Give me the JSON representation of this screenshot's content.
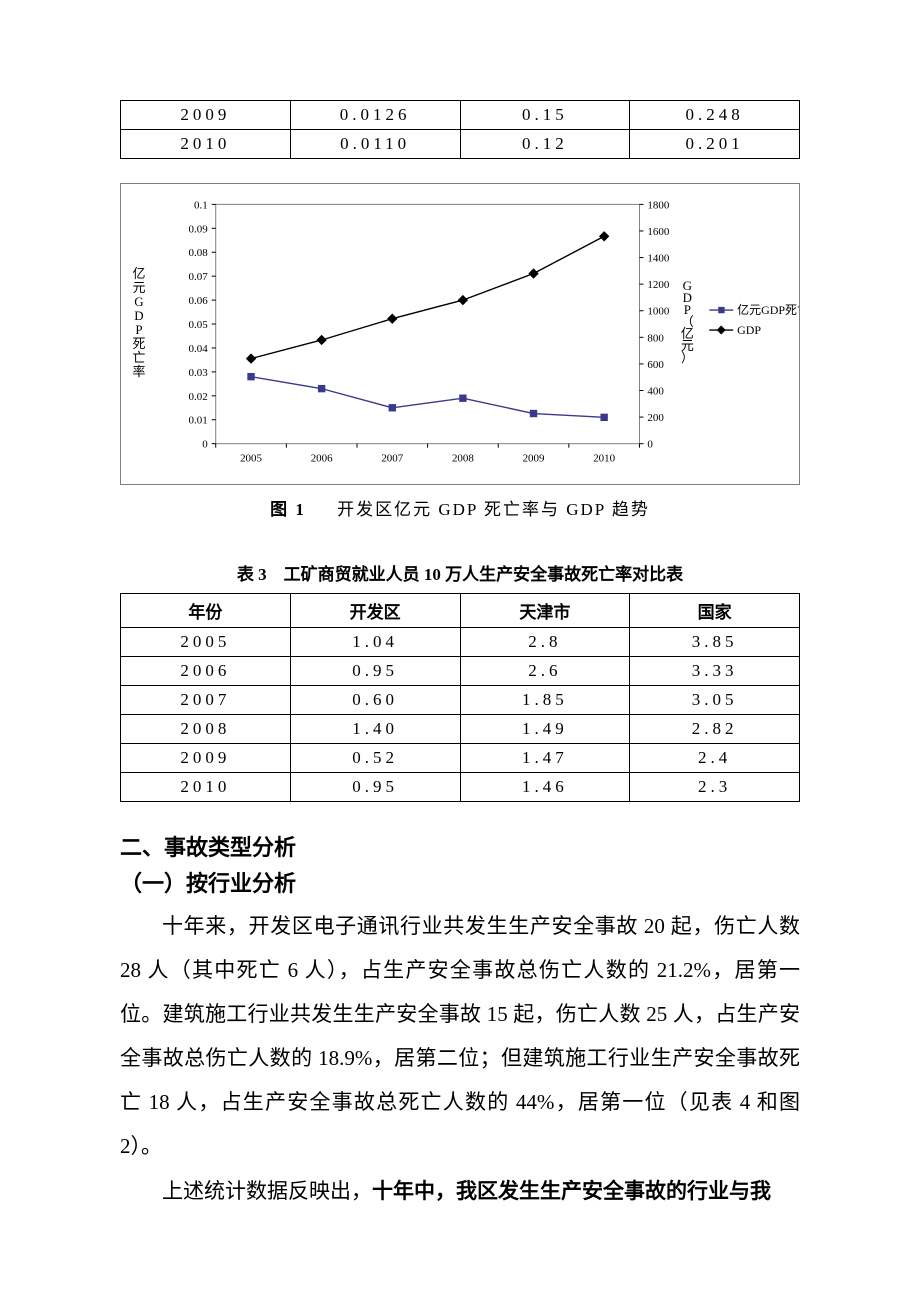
{
  "top_table": {
    "rows": [
      [
        "2009",
        "0.0126",
        "0.15",
        "0.248"
      ],
      [
        "2010",
        "0.0110",
        "0.12",
        "0.201"
      ]
    ]
  },
  "chart": {
    "type": "line",
    "categories": [
      "2005",
      "2006",
      "2007",
      "2008",
      "2009",
      "2010"
    ],
    "series": [
      {
        "name": "亿元GDP死亡率",
        "values": [
          0.028,
          0.023,
          0.015,
          0.019,
          0.0126,
          0.011
        ],
        "color": "#3a3a8c",
        "marker": "square",
        "marker_fill": "#3a3a8c",
        "line_color": "#3a3a8c",
        "axis": "left"
      },
      {
        "name": "GDP",
        "values": [
          640,
          780,
          940,
          1080,
          1280,
          1560
        ],
        "color": "#000000",
        "marker": "diamond",
        "marker_fill": "#000000",
        "line_color": "#000000",
        "axis": "right"
      }
    ],
    "left_axis": {
      "label": "亿元GDP死亡率",
      "min": 0,
      "max": 0.1,
      "step": 0.01,
      "ticks": [
        "0",
        "0.01",
        "0.02",
        "0.03",
        "0.04",
        "0.05",
        "0.06",
        "0.07",
        "0.08",
        "0.09",
        "0.1"
      ]
    },
    "right_axis": {
      "label": "GDP（亿元）",
      "min": 0,
      "max": 1800,
      "step": 200,
      "ticks": [
        "0",
        "200",
        "400",
        "600",
        "800",
        "1000",
        "1200",
        "1400",
        "1600",
        "1800"
      ]
    },
    "plot_border_color": "#808080",
    "tick_color": "#000000",
    "background_color": "#ffffff",
    "caption_prefix": "图 1",
    "caption": "开发区亿元 GDP 死亡率与 GDP 趋势"
  },
  "table3": {
    "caption_prefix": "表 3",
    "caption": "工矿商贸就业人员 10 万人生产安全事故死亡率对比表",
    "columns": [
      "年份",
      "开发区",
      "天津市",
      "国家"
    ],
    "rows": [
      [
        "2005",
        "1.04",
        "2.8",
        "3.85"
      ],
      [
        "2006",
        "0.95",
        "2.6",
        "3.33"
      ],
      [
        "2007",
        "0.60",
        "1.85",
        "3.05"
      ],
      [
        "2008",
        "1.40",
        "1.49",
        "2.82"
      ],
      [
        "2009",
        "0.52",
        "1.47",
        "2.4"
      ],
      [
        "2010",
        "0.95",
        "1.46",
        "2.3"
      ]
    ]
  },
  "section2_heading": "二、事故类型分析",
  "section2_sub": "（一）按行业分析",
  "para1": "十年来，开发区电子通讯行业共发生生产安全事故 20 起，伤亡人数28 人（其中死亡 6 人），占生产安全事故总伤亡人数的 21.2%，居第一位。建筑施工行业共发生生产安全事故 15 起，伤亡人数 25 人，占生产安全事故总伤亡人数的 18.9%，居第二位；但建筑施工行业生产安全事故死亡 18 人，占生产安全事故总死亡人数的 44%，居第一位（见表 4 和图2）。",
  "para2_prefix": "上述统计数据反映出，",
  "para2_bold": "十年中，我区发生生产安全事故的行业与我"
}
